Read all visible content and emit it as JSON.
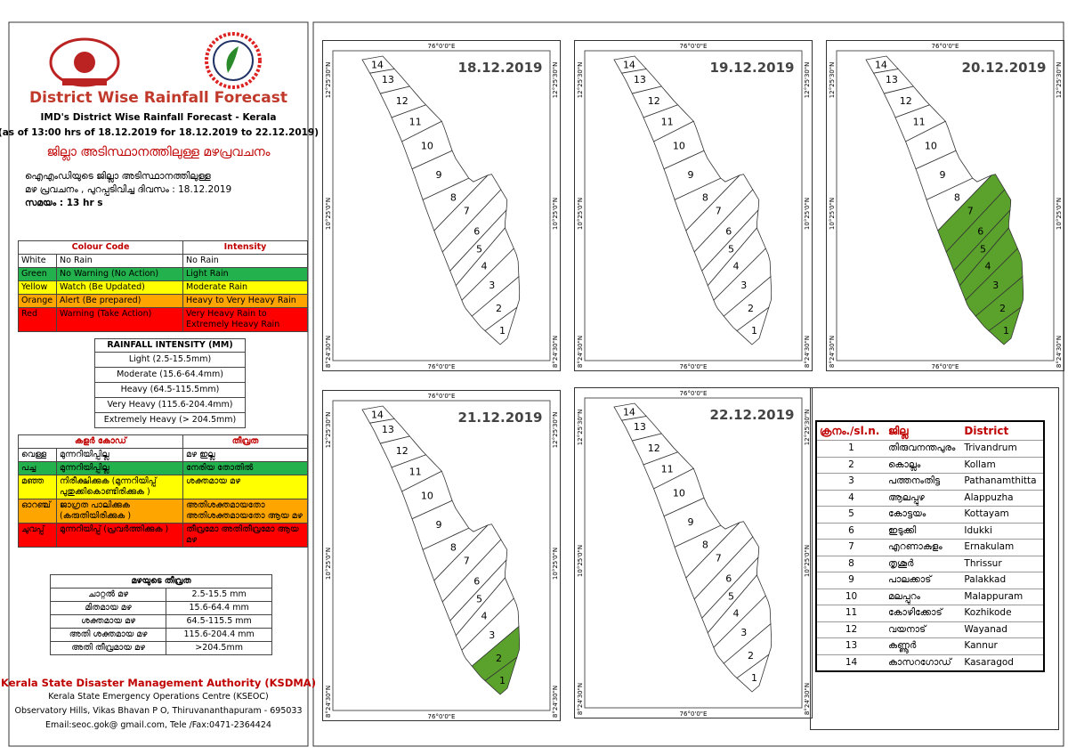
{
  "header": {
    "title": "District Wise Rainfall Forecast",
    "subtitle": "IMD's District Wise Rainfall Forecast - Kerala",
    "issued": "(as of 13:00 hrs of 18.12.2019  for 18.12.2019  to 22.12.2019)",
    "ml_title": "ജില്ലാ അടിസ്ഥാനത്തിലുള്ള മഴപ്രവചനം",
    "ml_lines": [
      "ഐഎംഡിയുടെ ജില്ലാ    അടിസ്ഥാനത്തിലുള്ള",
      "മഴ പ്രവചനം  , പുറപ്പടിവിച്ച      ദിവസം : 18.12.2019",
      "സമയം : 13   hr s"
    ]
  },
  "colour_table": {
    "headers": [
      "Colour Code",
      "Intensity"
    ],
    "colors": [
      "#ffffff",
      "#22b14c",
      "#ffff00",
      "#ffa500",
      "#ff0000"
    ],
    "rows": [
      [
        "White",
        "No Rain",
        "No Rain"
      ],
      [
        "Green",
        "No Warning (No Action)",
        "Light Rain"
      ],
      [
        "Yellow",
        "Watch (Be Updated)",
        "Moderate Rain"
      ],
      [
        "Orange",
        "Alert (Be prepared)",
        "Heavy to Very Heavy Rain"
      ],
      [
        "Red",
        "Warning (Take Action)",
        "Very Heavy Rain to Extremely Heavy Rain"
      ]
    ]
  },
  "intensity_table": {
    "title": "RAINFALL INTENSITY (MM)",
    "rows": [
      "Light (2.5-15.5mm)",
      "Moderate (15.6-64.4mm)",
      "Heavy (64.5-115.5mm)",
      "Very Heavy (115.6-204.4mm)",
      "Extremely Heavy (> 204.5mm)"
    ]
  },
  "ml_colour_table": {
    "headers": [
      "കളർ കോഡ്",
      "തീവ്രത"
    ],
    "rows": [
      [
        "വെള്ള",
        "മുന്നറിയിപ്പില്ല",
        "മഴ ഇല്ല"
      ],
      [
        "പച്ച",
        "മുന്നറിയിപ്പില്ല",
        "നേരിയ തോതിൽ"
      ],
      [
        "മഞ്ഞ",
        "നിരീക്ഷിക്കുക (മുന്നറിയിപ്പ് പുതുക്കികൊണ്ടിരിക്കുക )",
        "ശക്തമായ മഴ"
      ],
      [
        "ഓറഞ്ച്",
        "ജാഗ്രത പാലിക്കുക (കരുതിയിരിക്കുക )",
        "അതിശക്തമായതോ അതിശക്തമായതോ ആയ മഴ"
      ],
      [
        "ചുവപ്പ്",
        "മുന്നറിയിപ്പ് (പ്രവർത്തിക്കുക )",
        "തീവ്രമോ അതിതീവ്രമോ ആയ മഴ"
      ]
    ]
  },
  "ml_intensity_table": {
    "title": "മഴയുടെ തീവ്രത",
    "rows": [
      [
        "ചാറ്റൽ മഴ",
        "2.5-15.5 mm"
      ],
      [
        "മിതമായ മഴ",
        "15.6-64.4 mm"
      ],
      [
        "ശക്തമായ മഴ",
        "64.5-115.5 mm"
      ],
      [
        "അതി ശക്തമായ മഴ",
        "115.6-204.4 mm"
      ],
      [
        "അതി തീവ്രമായ മഴ",
        ">204.5mm"
      ]
    ]
  },
  "footer": {
    "org": "Kerala State Disaster Management Authority (KSDMA)",
    "lines": [
      "Kerala State Emergency Operations Centre (KSEOC)",
      "Observatory Hills, Vikas Bhavan P O, Thiruvananthapuram - 695033",
      "Email:seoc.gok@ gmail.com, Tele /Fax:0471-2364424"
    ]
  },
  "maps": {
    "lon_label": "76°0'0\"E",
    "lat_labels": [
      "12°25'30\"N",
      "10°25'0\"N",
      "8°24'30\"N"
    ],
    "green_color": "#5ba22d",
    "items": [
      {
        "date": "18.12.2019",
        "green": []
      },
      {
        "date": "19.12.2019",
        "green": []
      },
      {
        "date": "20.12.2019",
        "green": [
          1,
          2,
          3,
          4,
          5,
          6,
          7
        ]
      },
      {
        "date": "21.12.2019",
        "green": [
          1,
          2
        ]
      },
      {
        "date": "22.12.2019",
        "green": []
      }
    ]
  },
  "district_table": {
    "headers": [
      "ക്രനം./sl.n.",
      "ജില്ല",
      "District"
    ],
    "rows": [
      [
        "1",
        "തിരുവനന്തപുരം",
        "Trivandrum"
      ],
      [
        "2",
        "കൊല്ലം",
        "Kollam"
      ],
      [
        "3",
        "പത്തനംതിട്ട",
        "Pathanamthitta"
      ],
      [
        "4",
        "ആലപ്പുഴ",
        "Alappuzha"
      ],
      [
        "5",
        "കോട്ടയം",
        "Kottayam"
      ],
      [
        "6",
        "ഇടുക്കി",
        "Idukki"
      ],
      [
        "7",
        "എറണാകുളം",
        "Ernakulam"
      ],
      [
        "8",
        "തൃശൂർ",
        "Thrissur"
      ],
      [
        "9",
        "പാലക്കാട്",
        "Palakkad"
      ],
      [
        "10",
        "മലപ്പുറം",
        "Malappuram"
      ],
      [
        "11",
        "കോഴിക്കോട്",
        "Kozhikode"
      ],
      [
        "12",
        "വയനാട്",
        "Wayanad"
      ],
      [
        "13",
        "കണ്ണൂർ",
        "Kannur"
      ],
      [
        "14",
        "കാസറഗോഡ്",
        "Kasaragod"
      ]
    ]
  }
}
